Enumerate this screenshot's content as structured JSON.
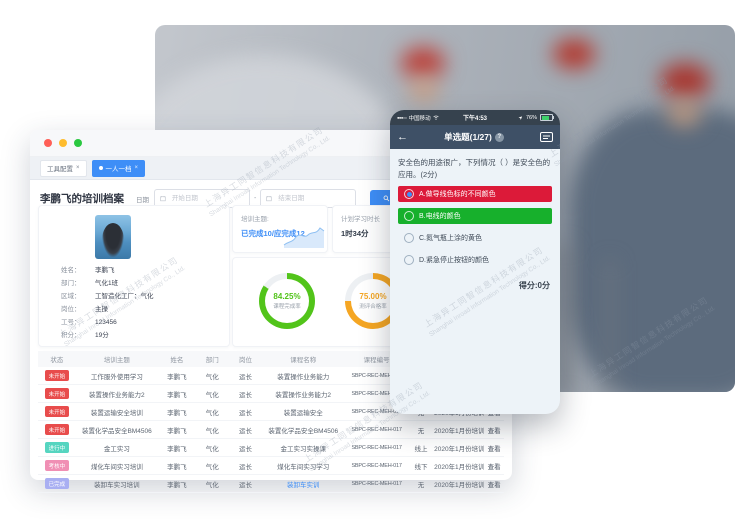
{
  "colors": {
    "accent": "#3e8ef7",
    "green": "#52c41a",
    "orange": "#f5a623",
    "option_red": "#dc1a39",
    "option_green": "#17b02c"
  },
  "watermark": {
    "cn": "上海异工同智信息科技有限公司",
    "en": "Shanghai Inroad Information Technology Co., Ltd."
  },
  "desktop": {
    "tabs": [
      {
        "label": "工具配置",
        "close": "×",
        "active": false
      },
      {
        "label": "一人一档",
        "close": "×",
        "active": true
      }
    ],
    "page_title": "李鹏飞的培训档案",
    "filter": {
      "date_label": "日期",
      "start_placeholder": "开始日期",
      "end_placeholder": "结束日期",
      "separator": "-",
      "search_button": "查询"
    },
    "profile": {
      "fields": [
        {
          "label": "姓名：",
          "value": "李鹏飞"
        },
        {
          "label": "部门：",
          "value": "气化1班"
        },
        {
          "label": "区域：",
          "value": "工智造化工厂：气化"
        },
        {
          "label": "岗位：",
          "value": "主操"
        },
        {
          "label": "工号：",
          "value": "123456"
        },
        {
          "label": "积分：",
          "value": "19分"
        }
      ]
    },
    "cards": {
      "topic_label": "培训主题:",
      "topic_value": "已完成10/应完成12",
      "plan_label": "计划学习时长",
      "plan_value": "1时34分"
    },
    "donuts": [
      {
        "value_text": "84.25%",
        "percent": 84.25,
        "label": "课程完成率",
        "color": "#52c41a"
      },
      {
        "value_text": "75.00%",
        "percent": 75,
        "label": "测评合格率",
        "color": "#f5a623"
      }
    ],
    "table": {
      "headers": [
        "状态",
        "培训主题",
        "姓名",
        "部门",
        "岗位",
        "课程名称",
        "课程编号",
        "培训方式",
        "培训计划",
        "操作"
      ],
      "rows": [
        {
          "status": "未开始",
          "status_color": "#e84c4c",
          "topic": "工作服外使用学习",
          "name": "李鹏飞",
          "dept": "气化",
          "post": "运长",
          "course": "装置操作业务能力",
          "course_link": false,
          "code": "SBPC-REC-MEH-017",
          "mode": "无",
          "plan": "2020年1月份培训计划",
          "action": "查看"
        },
        {
          "status": "未开始",
          "status_color": "#e84c4c",
          "topic": "装置操作业务能力2",
          "name": "李鹏飞",
          "dept": "气化",
          "post": "运长",
          "course": "装置操作业务能力2",
          "course_link": false,
          "code": "SBPC-REC-MEH-017",
          "mode": "无",
          "plan": "2020年1月份培训计划",
          "action": "查看"
        },
        {
          "status": "未开始",
          "status_color": "#e84c4c",
          "topic": "装置运输安全培训",
          "name": "李鹏飞",
          "dept": "气化",
          "post": "运长",
          "course": "装置运输安全",
          "course_link": false,
          "code": "SBPC-REC-MEH-017",
          "mode": "无",
          "plan": "2020年1月份培训计划",
          "action": "查看"
        },
        {
          "status": "未开始",
          "status_color": "#e84c4c",
          "topic": "装置化学品安全BM4506",
          "name": "李鹏飞",
          "dept": "气化",
          "post": "运长",
          "course": "装置化学品安全BM4506",
          "course_link": false,
          "code": "SBPC-REC-MEH-017",
          "mode": "无",
          "plan": "2020年1月份培训计划",
          "action": "查看"
        },
        {
          "status": "进行中",
          "status_color": "#56d5c0",
          "topic": "金工实习",
          "name": "李鹏飞",
          "dept": "气化",
          "post": "运长",
          "course": "金工实习实操课",
          "course_link": false,
          "code": "SBPC-REC-MEH-017",
          "mode": "线上",
          "plan": "2020年1月份培训计划",
          "action": "查看"
        },
        {
          "status": "考核中",
          "status_color": "#f08fb4",
          "topic": "煤化车间实习培训",
          "name": "李鹏飞",
          "dept": "气化",
          "post": "运长",
          "course": "煤化车间实习学习",
          "course_link": false,
          "code": "SBPC-REC-MEH-017",
          "mode": "线下",
          "plan": "2020年1月份培训计划",
          "action": "查看"
        },
        {
          "status": "已完成",
          "status_color": "#a9aff2",
          "topic": "装卸车实习培训",
          "name": "李鹏飞",
          "dept": "气化",
          "post": "运长",
          "course": "装卸车实训",
          "course_link": true,
          "code": "SBPC-REC-MEH-017",
          "mode": "无",
          "plan": "2020年1月份培训计划",
          "action": "查看"
        }
      ]
    }
  },
  "phone": {
    "status_bar": {
      "signal": "●●●○○",
      "carrier": "中国移动",
      "time": "下午4:53",
      "location_icon": "➤",
      "battery": "76%"
    },
    "nav": {
      "back_icon": "←",
      "title": "单选题(1/27)",
      "help": "?"
    },
    "question": "安全色的用途很广，下列情况（ ）是安全色的应用。(2分)",
    "options": [
      {
        "label": "A.做导线色标的不同颜色",
        "bg": "#dc1a39",
        "selected": true
      },
      {
        "label": "B.电线的颜色",
        "bg": "#17b02c",
        "selected": false
      },
      {
        "label": "C.氮气瓶上涂的黄色",
        "bg": "",
        "selected": false
      },
      {
        "label": "D.紧急停止按钮的颜色",
        "bg": "",
        "selected": false
      }
    ],
    "score": "得分:0分"
  }
}
